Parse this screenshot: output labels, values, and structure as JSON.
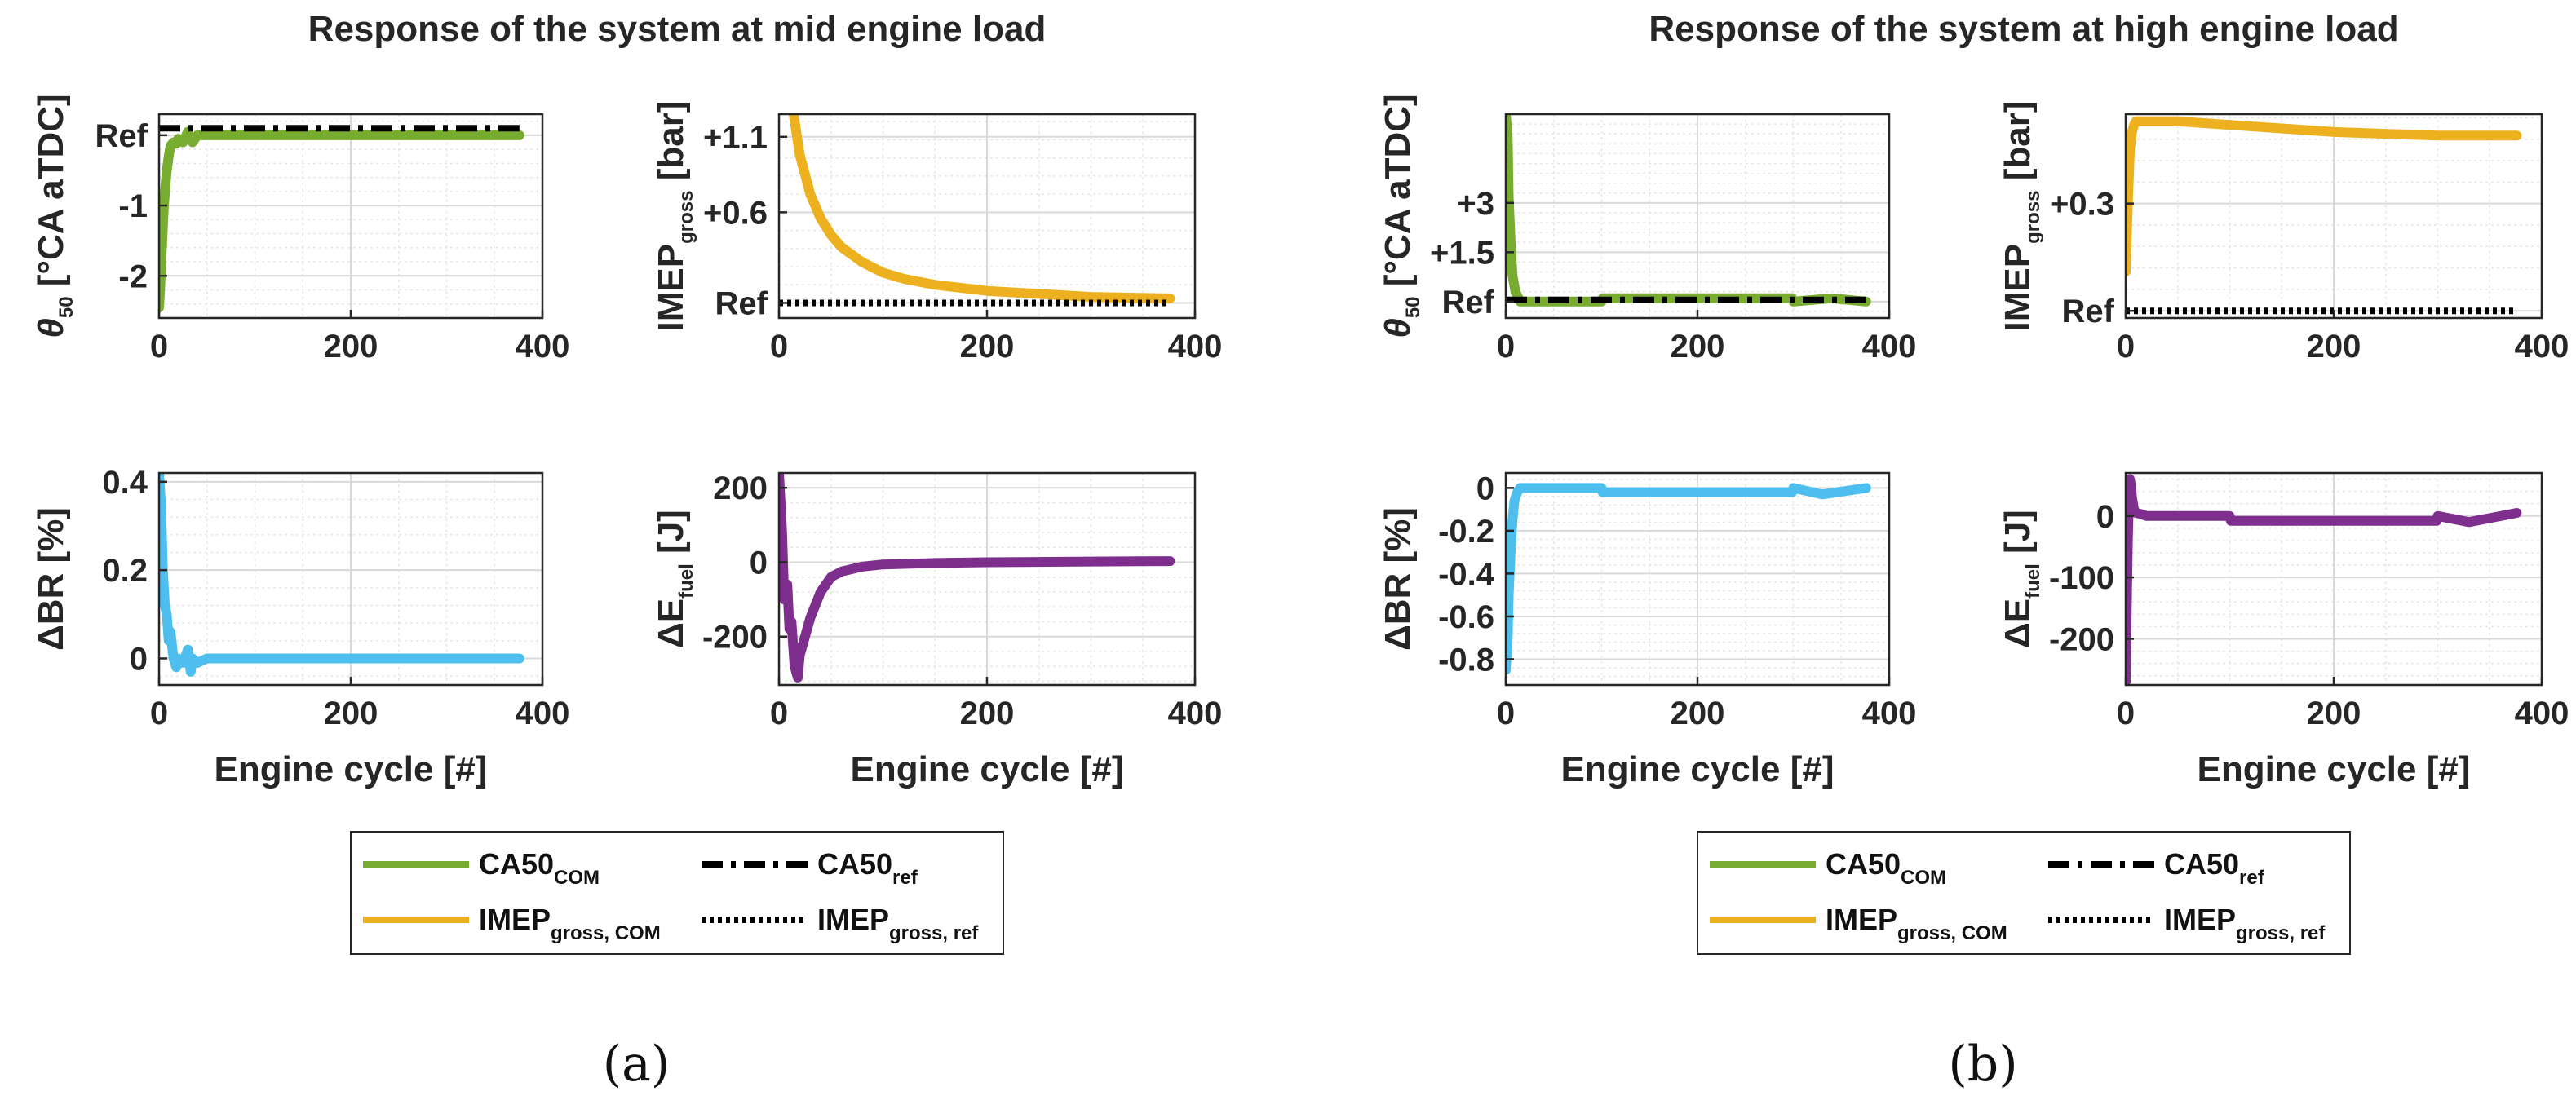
{
  "colors": {
    "ca50": "#77AC30",
    "imep": "#EDB120",
    "dbr": "#4DBEEE",
    "dfuel": "#7E2F8E",
    "ref": "#000000",
    "grid_major": "#d9d9d9",
    "grid_minor": "#e6e6e6",
    "axis": "#262626"
  },
  "chart_data": [
    {
      "panel": "a",
      "title": "Response of the system at mid engine load",
      "caption": "(a)",
      "xlabel": "Engine cycle [#]",
      "legend": {
        "com_ca50": "CA50",
        "com_ca50_sub": "COM",
        "ref_ca50": "CA50",
        "ref_ca50_sub": "ref",
        "com_imep": "IMEP",
        "com_imep_sub": "gross, COM",
        "ref_imep": "IMEP",
        "ref_imep_sub": "gross, ref"
      },
      "subplots": [
        {
          "key": "theta",
          "type": "line",
          "ylabel": "θ50 [°CA aTDC]",
          "ylabel_main": "θ",
          "ylabel_sub": "50",
          "ylabel_rest": " [°CA aTDC]",
          "xlim": [
            0,
            400
          ],
          "ylim": [
            -2.6,
            0.3
          ],
          "xticks": [
            0,
            200,
            400
          ],
          "xtick_labels": [
            "0",
            "200",
            "400"
          ],
          "yticks": [
            -2,
            -1,
            0
          ],
          "ytick_labels": [
            "-2",
            "-1",
            "Ref"
          ],
          "series": [
            {
              "name": "CA50COM",
              "color_key": "ca50",
              "style": "solid",
              "x": [
                0,
                1,
                3,
                5,
                8,
                10,
                12,
                15,
                18,
                20,
                25,
                30,
                35,
                40,
                50,
                100,
                200,
                300,
                376
              ],
              "y": [
                -2.45,
                -2.2,
                -1.6,
                -1.0,
                -0.5,
                -0.3,
                -0.15,
                -0.1,
                -0.12,
                -0.05,
                -0.1,
                0.05,
                -0.1,
                0.0,
                0.0,
                0.0,
                0.0,
                0.0,
                0.0
              ]
            },
            {
              "name": "CA50ref",
              "color_key": "ref",
              "style": "dashdot",
              "x": [
                0,
                376
              ],
              "y": [
                0.1,
                0.1
              ]
            }
          ]
        },
        {
          "key": "imep",
          "type": "line",
          "ylabel": "IMEPgross [bar]",
          "ylabel_main": "IMEP",
          "ylabel_sub": "gross",
          "ylabel_rest": " [bar]",
          "xlim": [
            0,
            400
          ],
          "ylim": [
            -0.1,
            1.25
          ],
          "xticks": [
            0,
            200,
            400
          ],
          "xtick_labels": [
            "0",
            "200",
            "400"
          ],
          "yticks": [
            0,
            0.6,
            1.1
          ],
          "ytick_labels": [
            "Ref",
            "+0.6",
            "+1.1"
          ],
          "series": [
            {
              "name": "IMEPgross,COM",
              "color_key": "imep",
              "style": "solid",
              "x": [
                14,
                20,
                30,
                40,
                50,
                60,
                80,
                100,
                120,
                150,
                200,
                250,
                300,
                376
              ],
              "y": [
                1.25,
                0.98,
                0.72,
                0.56,
                0.45,
                0.37,
                0.27,
                0.2,
                0.16,
                0.12,
                0.08,
                0.06,
                0.04,
                0.03
              ]
            },
            {
              "name": "IMEPgross,ref",
              "color_key": "ref",
              "style": "dotted",
              "x": [
                0,
                376
              ],
              "y": [
                0,
                0
              ]
            }
          ]
        },
        {
          "key": "dbr",
          "type": "line",
          "ylabel": "ΔBR [%]",
          "ylabel_main": "ΔBR [%]",
          "ylabel_sub": "",
          "ylabel_rest": "",
          "xlim": [
            0,
            400
          ],
          "ylim": [
            -0.06,
            0.42
          ],
          "xticks": [
            0,
            200,
            400
          ],
          "xtick_labels": [
            "0",
            "200",
            "400"
          ],
          "yticks": [
            0,
            0.2,
            0.4
          ],
          "ytick_labels": [
            "0",
            "0.2",
            "0.4"
          ],
          "series": [
            {
              "name": "ΔBR",
              "color_key": "dbr",
              "style": "solid",
              "x": [
                0,
                2,
                4,
                6,
                8,
                10,
                12,
                15,
                18,
                20,
                25,
                30,
                33,
                35,
                40,
                50,
                100,
                200,
                300,
                376
              ],
              "y": [
                0.42,
                0.35,
                0.2,
                0.12,
                0.1,
                0.04,
                0.06,
                0.0,
                -0.02,
                0.0,
                -0.01,
                0.02,
                -0.03,
                0.0,
                -0.01,
                0.0,
                0.0,
                0.0,
                0.0,
                0.0
              ]
            }
          ]
        },
        {
          "key": "dfuel",
          "type": "line",
          "ylabel": "ΔEfuel [J]",
          "ylabel_main": "ΔE",
          "ylabel_sub": "fuel",
          "ylabel_rest": " [J]",
          "xlim": [
            0,
            400
          ],
          "ylim": [
            -330,
            240
          ],
          "xticks": [
            0,
            200,
            400
          ],
          "xtick_labels": [
            "0",
            "200",
            "400"
          ],
          "yticks": [
            -200,
            0,
            200
          ],
          "ytick_labels": [
            "-200",
            "0",
            "200"
          ],
          "series": [
            {
              "name": "ΔEfuel",
              "color_key": "dfuel",
              "style": "solid",
              "x": [
                0,
                3,
                5,
                8,
                10,
                12,
                15,
                18,
                20,
                25,
                30,
                40,
                50,
                60,
                80,
                100,
                150,
                200,
                300,
                376
              ],
              "y": [
                240,
                80,
                -100,
                -60,
                -180,
                -160,
                -280,
                -310,
                -250,
                -200,
                -150,
                -80,
                -40,
                -25,
                -12,
                -6,
                -2,
                0,
                2,
                3
              ]
            }
          ]
        }
      ]
    },
    {
      "panel": "b",
      "title": "Response of the system at high engine load",
      "caption": "(b)",
      "xlabel": "Engine cycle [#]",
      "legend": {
        "com_ca50": "CA50",
        "com_ca50_sub": "COM",
        "ref_ca50": "CA50",
        "ref_ca50_sub": "ref",
        "com_imep": "IMEP",
        "com_imep_sub": "gross, COM",
        "ref_imep": "IMEP",
        "ref_imep_sub": "gross, ref"
      },
      "subplots": [
        {
          "key": "theta",
          "type": "line",
          "ylabel": "θ50 [°CA aTDC]",
          "ylabel_main": "θ",
          "ylabel_sub": "50",
          "ylabel_rest": " [°CA aTDC]",
          "xlim": [
            0,
            400
          ],
          "ylim": [
            -0.5,
            5.7
          ],
          "xticks": [
            0,
            200,
            400
          ],
          "xtick_labels": [
            "0",
            "200",
            "400"
          ],
          "yticks": [
            0,
            1.5,
            3
          ],
          "ytick_labels": [
            "Ref",
            "+1.5",
            "+3"
          ],
          "series": [
            {
              "name": "CA50COM",
              "color_key": "ca50",
              "style": "solid",
              "x": [
                0,
                2,
                3,
                5,
                7,
                10,
                15,
                20,
                50,
                100,
                101,
                150,
                200,
                250,
                299,
                300,
                340,
                376
              ],
              "y": [
                5.7,
                5.0,
                3.2,
                1.8,
                0.8,
                0.3,
                0.0,
                0.0,
                0.0,
                0.0,
                0.1,
                0.1,
                0.1,
                0.1,
                0.1,
                0.0,
                0.1,
                0.0
              ]
            },
            {
              "name": "CA50ref",
              "color_key": "ref",
              "style": "dashdot",
              "x": [
                0,
                376
              ],
              "y": [
                0.05,
                0.05
              ]
            }
          ]
        },
        {
          "key": "imep",
          "type": "line",
          "ylabel": "IMEPgross [bar]",
          "ylabel_main": "IMEP",
          "ylabel_sub": "gross",
          "ylabel_rest": " [bar]",
          "xlim": [
            0,
            400
          ],
          "ylim": [
            -0.02,
            0.55
          ],
          "xticks": [
            0,
            200,
            400
          ],
          "xtick_labels": [
            "0",
            "200",
            "400"
          ],
          "yticks": [
            0,
            0.3
          ],
          "ytick_labels": [
            "Ref",
            "+0.3"
          ],
          "series": [
            {
              "name": "IMEPgross,COM",
              "color_key": "imep",
              "style": "solid",
              "x": [
                0,
                2,
                4,
                6,
                8,
                10,
                15,
                20,
                50,
                100,
                150,
                200,
                300,
                376
              ],
              "y": [
                0.11,
                0.3,
                0.45,
                0.5,
                0.52,
                0.53,
                0.53,
                0.53,
                0.53,
                0.52,
                0.51,
                0.5,
                0.49,
                0.49
              ]
            },
            {
              "name": "IMEPgross,ref",
              "color_key": "ref",
              "style": "dotted",
              "x": [
                0,
                376
              ],
              "y": [
                0,
                0
              ]
            }
          ]
        },
        {
          "key": "dbr",
          "type": "line",
          "ylabel": "ΔBR [%]",
          "ylabel_main": "ΔBR [%]",
          "ylabel_sub": "",
          "ylabel_rest": "",
          "xlim": [
            0,
            400
          ],
          "ylim": [
            -0.92,
            0.07
          ],
          "xticks": [
            0,
            200,
            400
          ],
          "xtick_labels": [
            "0",
            "200",
            "400"
          ],
          "yticks": [
            -0.8,
            -0.6,
            -0.4,
            -0.2,
            0
          ],
          "ytick_labels": [
            "-0.8",
            "-0.6",
            "-0.4",
            "-0.2",
            "0"
          ],
          "series": [
            {
              "name": "ΔBR",
              "color_key": "dbr",
              "style": "solid",
              "x": [
                0,
                2,
                3,
                5,
                7,
                9,
                12,
                15,
                20,
                50,
                100,
                101,
                200,
                299,
                300,
                330,
                376
              ],
              "y": [
                -0.85,
                -0.7,
                -0.5,
                -0.3,
                -0.15,
                -0.06,
                -0.02,
                0.0,
                0.0,
                0.0,
                0.0,
                -0.02,
                -0.02,
                -0.02,
                0.0,
                -0.03,
                0.0
              ]
            }
          ]
        },
        {
          "key": "dfuel",
          "type": "line",
          "ylabel": "ΔEfuel [J]",
          "ylabel_main": "ΔE",
          "ylabel_sub": "fuel",
          "ylabel_rest": " [J]",
          "xlim": [
            0,
            400
          ],
          "ylim": [
            -275,
            70
          ],
          "xticks": [
            0,
            200,
            400
          ],
          "xtick_labels": [
            "0",
            "200",
            "400"
          ],
          "yticks": [
            -200,
            -100,
            0
          ],
          "ytick_labels": [
            "-200",
            "-100",
            "0"
          ],
          "series": [
            {
              "name": "ΔEfuel",
              "color_key": "dfuel",
              "style": "solid",
              "x": [
                0,
                1,
                2,
                3,
                4,
                5,
                6,
                8,
                10,
                15,
                20,
                50,
                100,
                101,
                200,
                299,
                300,
                330,
                376
              ],
              "y": [
                -270,
                -150,
                -40,
                20,
                60,
                50,
                30,
                10,
                5,
                3,
                0,
                0,
                0,
                -8,
                -8,
                -8,
                0,
                -10,
                5
              ]
            }
          ]
        }
      ]
    }
  ]
}
